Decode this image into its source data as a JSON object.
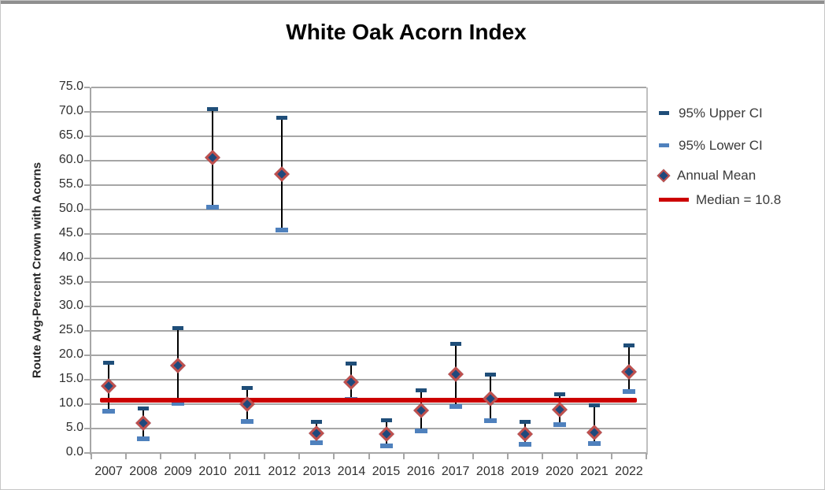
{
  "title": "White Oak Acorn Index",
  "chart_data": {
    "type": "scatter",
    "subtype": "error-bar-plot",
    "title": "White Oak Acorn Index",
    "xlabel": "",
    "ylabel": "Route Avg-Percent Crown with Acorns",
    "ylim": [
      0,
      75
    ],
    "ytick_step": 5,
    "ytick_labels": [
      "0.0",
      "5.0",
      "10.0",
      "15.0",
      "20.0",
      "25.0",
      "30.0",
      "35.0",
      "40.0",
      "45.0",
      "50.0",
      "55.0",
      "60.0",
      "65.0",
      "70.0",
      "75.0"
    ],
    "grid": true,
    "legend_position": "right",
    "categories": [
      "2007",
      "2008",
      "2009",
      "2010",
      "2011",
      "2012",
      "2013",
      "2014",
      "2015",
      "2016",
      "2017",
      "2018",
      "2019",
      "2020",
      "2021",
      "2022"
    ],
    "series": [
      {
        "name": "95% Upper CI",
        "marker": "dash",
        "values": [
          18.6,
          9.2,
          25.7,
          70.6,
          13.4,
          68.8,
          6.4,
          18.4,
          6.8,
          12.9,
          22.5,
          16.1,
          6.4,
          12.1,
          9.9,
          22.2
        ]
      },
      {
        "name": "95% Lower CI",
        "marker": "dash",
        "values": [
          8.5,
          2.9,
          10.2,
          50.5,
          6.4,
          45.7,
          2.1,
          11.0,
          1.5,
          4.5,
          9.6,
          6.6,
          1.7,
          5.8,
          1.9,
          12.6
        ]
      },
      {
        "name": "Annual Mean",
        "marker": "diamond",
        "values": [
          13.7,
          6.2,
          18.0,
          60.6,
          10.0,
          57.3,
          4.1,
          14.6,
          3.9,
          8.8,
          16.2,
          11.2,
          3.9,
          8.9,
          4.2,
          16.6
        ]
      },
      {
        "name": "Median = 10.8",
        "marker": "hline",
        "value": 10.8
      }
    ]
  },
  "legend": {
    "items": [
      {
        "label": "95% Upper CI",
        "swatch": "dash",
        "color": "#1F4E79"
      },
      {
        "label": "95% Lower CI",
        "swatch": "dash",
        "color": "#4F81BD"
      },
      {
        "label": "Annual Mean",
        "swatch": "diamond",
        "fill": "#1F497D",
        "border": "#C0504D"
      },
      {
        "label": "Median = 10.8",
        "swatch": "line",
        "color": "#CC0000"
      }
    ]
  },
  "colors": {
    "upper_ci": "#1F4E79",
    "lower_ci": "#4F81BD",
    "mean_fill": "#1F497D",
    "mean_border": "#C0504D",
    "median_line": "#CC0000",
    "error_bar": "#000000",
    "gridline": "#A6A6A6",
    "plot_right_border": "#C0C0C0",
    "axis_text": "#303030"
  }
}
